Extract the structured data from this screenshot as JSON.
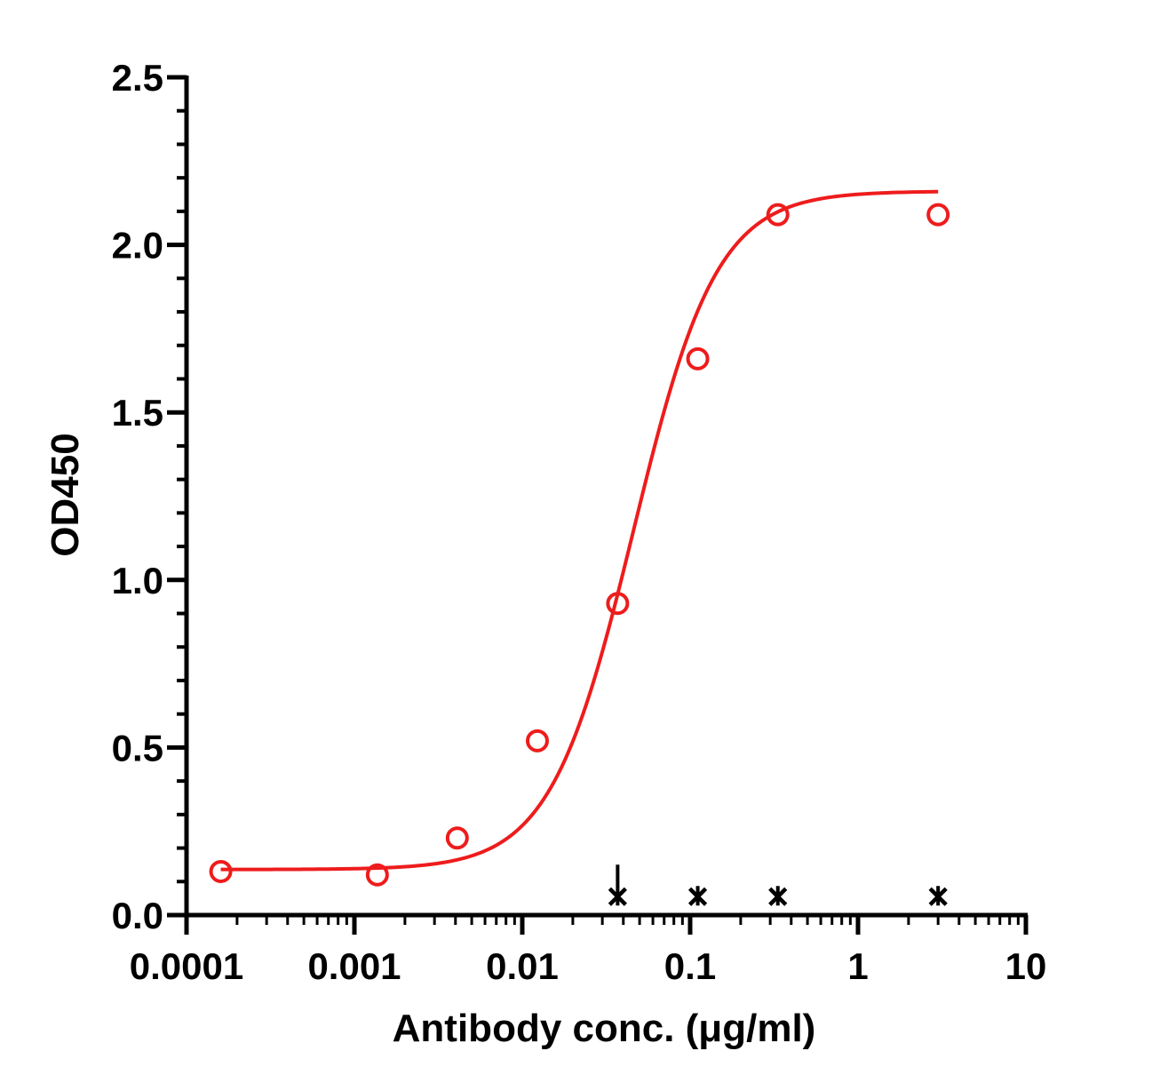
{
  "chart_data": {
    "type": "scatter",
    "xlabel": "Antibody conc. (μg/ml)",
    "ylabel": "OD450",
    "x_scale": "log",
    "xlim": [
      0.0001,
      10
    ],
    "ylim": [
      0,
      2.5
    ],
    "x_ticks": [
      {
        "value": 0.0001,
        "label": "0.0001"
      },
      {
        "value": 0.001,
        "label": "0.001"
      },
      {
        "value": 0.01,
        "label": "0.01"
      },
      {
        "value": 0.1,
        "label": "0.1"
      },
      {
        "value": 1,
        "label": "1"
      },
      {
        "value": 10,
        "label": "10"
      }
    ],
    "y_ticks": [
      {
        "value": 0,
        "label": "0.0"
      },
      {
        "value": 0.5,
        "label": "0.5"
      },
      {
        "value": 1.0,
        "label": "1.0"
      },
      {
        "value": 1.5,
        "label": "1.5"
      },
      {
        "value": 2.0,
        "label": "2.0"
      },
      {
        "value": 2.5,
        "label": "2.5"
      }
    ],
    "grid": false,
    "legend": "none",
    "series": [
      {
        "marker": "open-circle",
        "color": "#ee1c1c",
        "fit": "sigmoidal-4PL",
        "fit_range": [
          0.00016,
          3.0
        ],
        "fit_params": {
          "bottom": 0.136,
          "top": 2.16,
          "ec50": 0.046,
          "hill": 1.75
        },
        "points": [
          {
            "x": 0.00016,
            "y": 0.13
          },
          {
            "x": 0.00137,
            "y": 0.12
          },
          {
            "x": 0.0041,
            "y": 0.23
          },
          {
            "x": 0.0123,
            "y": 0.52
          },
          {
            "x": 0.037,
            "y": 0.93
          },
          {
            "x": 0.111,
            "y": 1.66
          },
          {
            "x": 0.333,
            "y": 2.09
          },
          {
            "x": 3.0,
            "y": 2.09
          }
        ]
      },
      {
        "marker": "cross",
        "color": "#000000",
        "points": [
          {
            "x": 0.037,
            "y": 0.055
          },
          {
            "x": 0.111,
            "y": 0.055
          },
          {
            "x": 0.333,
            "y": 0.055
          },
          {
            "x": 3.0,
            "y": 0.055
          }
        ]
      }
    ]
  }
}
